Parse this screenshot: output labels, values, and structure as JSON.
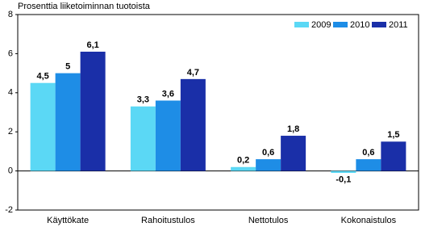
{
  "chart_data": {
    "type": "bar",
    "title": "Prosenttia liiketoiminnan tuotoista",
    "categories": [
      "Käyttökate",
      "Rahoitustulos",
      "Nettotulos",
      "Kokonaistulos"
    ],
    "series": [
      {
        "name": "2009",
        "color": "#5bd8f5",
        "values": [
          4.5,
          3.3,
          0.2,
          -0.1
        ],
        "value_labels": [
          "4,5",
          "3,3",
          "0,2",
          "-0,1"
        ]
      },
      {
        "name": "2010",
        "color": "#1e8de6",
        "values": [
          5,
          3.6,
          0.6,
          0.6
        ],
        "value_labels": [
          "5",
          "3,6",
          "0,6",
          "0,6"
        ]
      },
      {
        "name": "2011",
        "color": "#1a2fa8",
        "values": [
          6.1,
          4.7,
          1.8,
          1.5
        ],
        "value_labels": [
          "6,1",
          "4,7",
          "1,8",
          "1,5"
        ]
      }
    ],
    "ylim": [
      -2,
      8
    ],
    "yticks": [
      -2,
      0,
      2,
      4,
      6,
      8
    ],
    "grid": false,
    "legend": "top-right"
  }
}
